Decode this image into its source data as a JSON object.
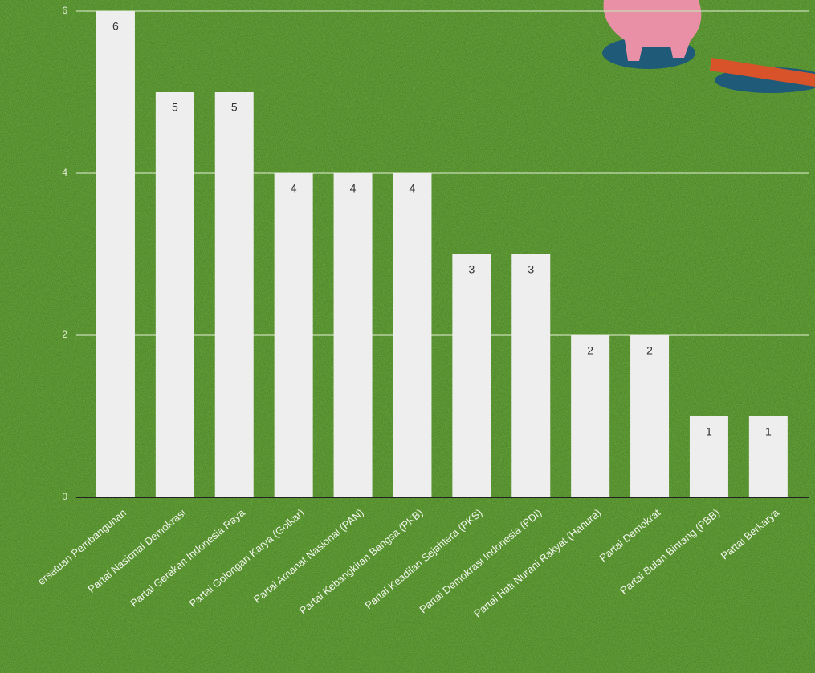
{
  "chart_data": {
    "type": "bar",
    "categories": [
      "ersatuan Pembangunan",
      "Partai Nasional Demokrasi",
      "Partai Gerakan Indonesia Raya",
      "Partai Golongan Karya (Golkar)",
      "Partai Amanat Nasional (PAN)",
      "Partai Kebangkitan Bangsa (PKB)",
      "Partai Keadilan Sejahtera (PKS)",
      "Partai Demokrasi Indonesia (PDI)",
      "Partai Hati Nurani Rakyat (Hanura)",
      "Partai Demokrat",
      "Partai Bulan Bintang (PBB)",
      "Partai Berkarya"
    ],
    "values": [
      6,
      5,
      5,
      4,
      4,
      4,
      3,
      3,
      2,
      2,
      1,
      1
    ],
    "color": "#eeeeee",
    "ylim": [
      0,
      6
    ],
    "yticks": [
      0,
      2,
      4,
      6
    ],
    "grid": true
  }
}
